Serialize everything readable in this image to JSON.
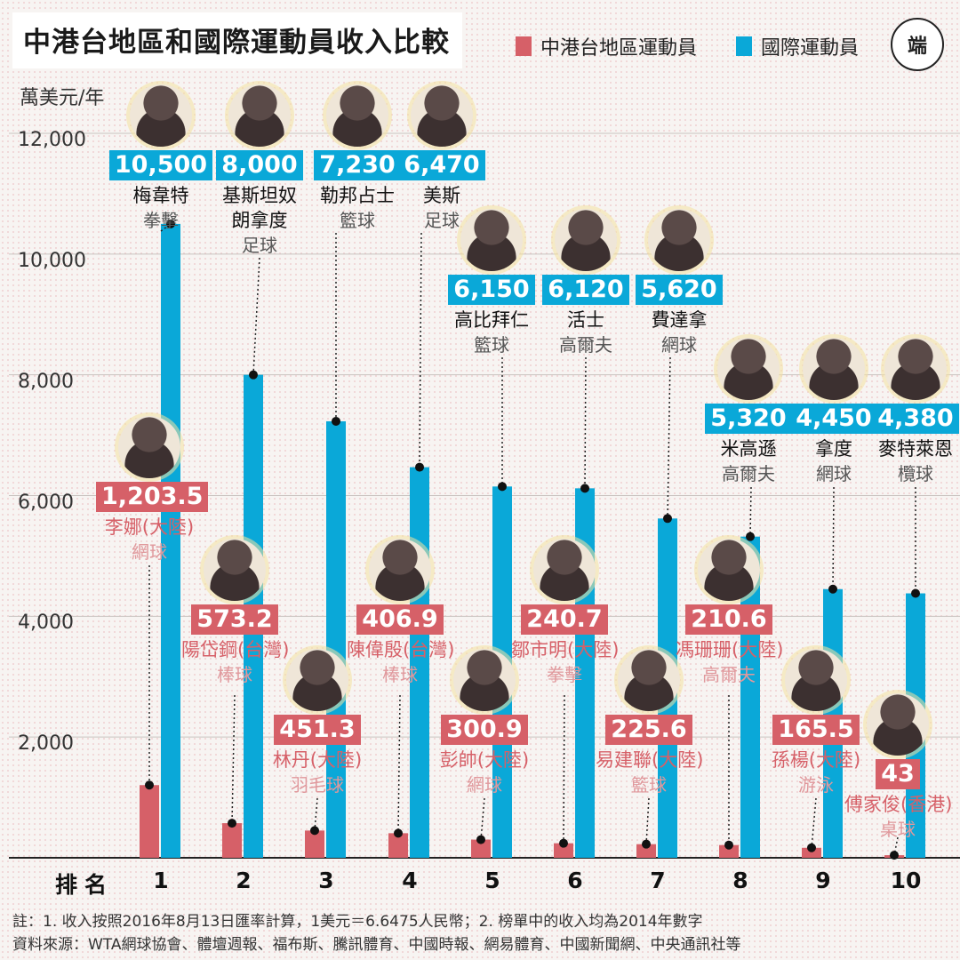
{
  "title": "中港台地區和國際運動員收入比較",
  "legend": {
    "local": "中港台地區運動員",
    "intl": "國際運動員"
  },
  "logo_text": "端",
  "colors": {
    "local": "#d66068",
    "intl": "#0aa8d8"
  },
  "unit": "萬美元/年",
  "rank_label": "排名",
  "notes": [
    "註：1. 收入按照2016年8月13日匯率計算，1美元＝6.6475人民幣；2. 榜單中的收入均為2014年數字",
    "資料來源：WTA網球協會、體壇週報、福布斯、騰訊體育、中國時報、網易體育、中國新聞網、中央通訊社等"
  ],
  "chart_data": {
    "type": "bar",
    "title": "中港台地區和國際運動員收入比較",
    "ylabel": "萬美元/年",
    "ylim": [
      0,
      12000
    ],
    "yticks": [
      "2,000",
      "4,000",
      "6,000",
      "8,000",
      "10,000",
      "12,000"
    ],
    "ytick_values": [
      2000,
      4000,
      6000,
      8000,
      10000,
      12000
    ],
    "categories": [
      "1",
      "2",
      "3",
      "4",
      "5",
      "6",
      "7",
      "8",
      "9",
      "10"
    ],
    "series": [
      {
        "name": "中港台地區運動員",
        "values": [
          1203.5,
          573.2,
          451.3,
          406.9,
          300.9,
          240.7,
          225.6,
          210.6,
          165.5,
          43
        ],
        "labels": [
          "1,203.5",
          "573.2",
          "451.3",
          "406.9",
          "300.9",
          "240.7",
          "225.6",
          "210.6",
          "165.5",
          "43"
        ],
        "athletes": [
          "李娜(大陸)",
          "陽岱鋼(台灣)",
          "林丹(大陸)",
          "陳偉殷(台灣)",
          "彭帥(大陸)",
          "鄒市明(大陸)",
          "易建聯(大陸)",
          "馮珊珊(大陸)",
          "孫楊(大陸)",
          "傅家俊(香港)"
        ],
        "sports": [
          "網球",
          "棒球",
          "羽毛球",
          "棒球",
          "網球",
          "拳擊",
          "籃球",
          "高爾夫",
          "游泳",
          "桌球"
        ]
      },
      {
        "name": "國際運動員",
        "values": [
          10500,
          8000,
          7230,
          6470,
          6150,
          6120,
          5620,
          5320,
          4450,
          4380
        ],
        "labels": [
          "10,500",
          "8,000",
          "7,230",
          "6,470",
          "6,150",
          "6,120",
          "5,620",
          "5,320",
          "4,450",
          "4,380"
        ],
        "athletes": [
          "梅韋特",
          "基斯坦奴\n朗拿度",
          "勒邦占士",
          "美斯",
          "高比拜仁",
          "活士",
          "費達拿",
          "米高遜",
          "拿度",
          "麥特萊恩"
        ],
        "sports": [
          "拳擊",
          "足球",
          "籃球",
          "足球",
          "籃球",
          "高爾夫",
          "網球",
          "高爾夫",
          "網球",
          "欖球"
        ]
      }
    ],
    "grid": true,
    "legend_position": "top-right"
  }
}
